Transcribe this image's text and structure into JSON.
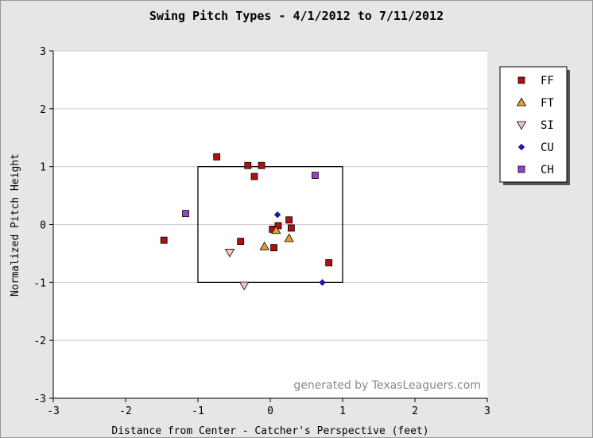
{
  "chart_data": {
    "type": "scatter",
    "title": "Swing Pitch Types - 4/1/2012 to 7/11/2012",
    "xlabel": "Distance from Center - Catcher's Perspective (feet)",
    "ylabel": "Normalized Pitch Height",
    "xlim": [
      -3,
      3
    ],
    "ylim": [
      -3,
      3
    ],
    "x_ticks": [
      "-3",
      "-2",
      "-1",
      "0",
      "1",
      "2",
      "3"
    ],
    "y_ticks": [
      "-3",
      "-2",
      "-1",
      "0",
      "1",
      "2",
      "3"
    ],
    "grid": "horizontal",
    "legend_position": "top-right",
    "watermark": "generated by TexasLeaguers.com",
    "strike_zone": {
      "x": [
        -1,
        1
      ],
      "y": [
        -1,
        1
      ]
    },
    "series": [
      {
        "name": "FF",
        "marker": "square",
        "color": "#b01010",
        "points": [
          [
            -0.74,
            1.17
          ],
          [
            -0.31,
            1.02
          ],
          [
            -0.12,
            1.02
          ],
          [
            -0.22,
            0.83
          ],
          [
            -1.47,
            -0.27
          ],
          [
            -0.41,
            -0.29
          ],
          [
            0.03,
            -0.08
          ],
          [
            0.11,
            -0.02
          ],
          [
            0.26,
            0.08
          ],
          [
            0.29,
            -0.06
          ],
          [
            0.05,
            -0.4
          ],
          [
            0.81,
            -0.66
          ]
        ]
      },
      {
        "name": "FT",
        "marker": "triangle-up",
        "color": "#e0a030",
        "points": [
          [
            -0.08,
            -0.38
          ],
          [
            0.08,
            -0.1
          ],
          [
            0.26,
            -0.24
          ]
        ]
      },
      {
        "name": "SI",
        "marker": "triangle-down",
        "color": "#f5c8c8",
        "points": [
          [
            -0.56,
            -0.48
          ],
          [
            -0.36,
            -1.05
          ]
        ]
      },
      {
        "name": "CU",
        "marker": "diamond",
        "color": "#1a1aa0",
        "points": [
          [
            0.1,
            0.17
          ],
          [
            0.72,
            -1.0
          ]
        ]
      },
      {
        "name": "CH",
        "marker": "square",
        "color": "#9a3fd0",
        "points": [
          [
            -1.17,
            0.19
          ],
          [
            0.62,
            0.85
          ]
        ]
      }
    ]
  }
}
